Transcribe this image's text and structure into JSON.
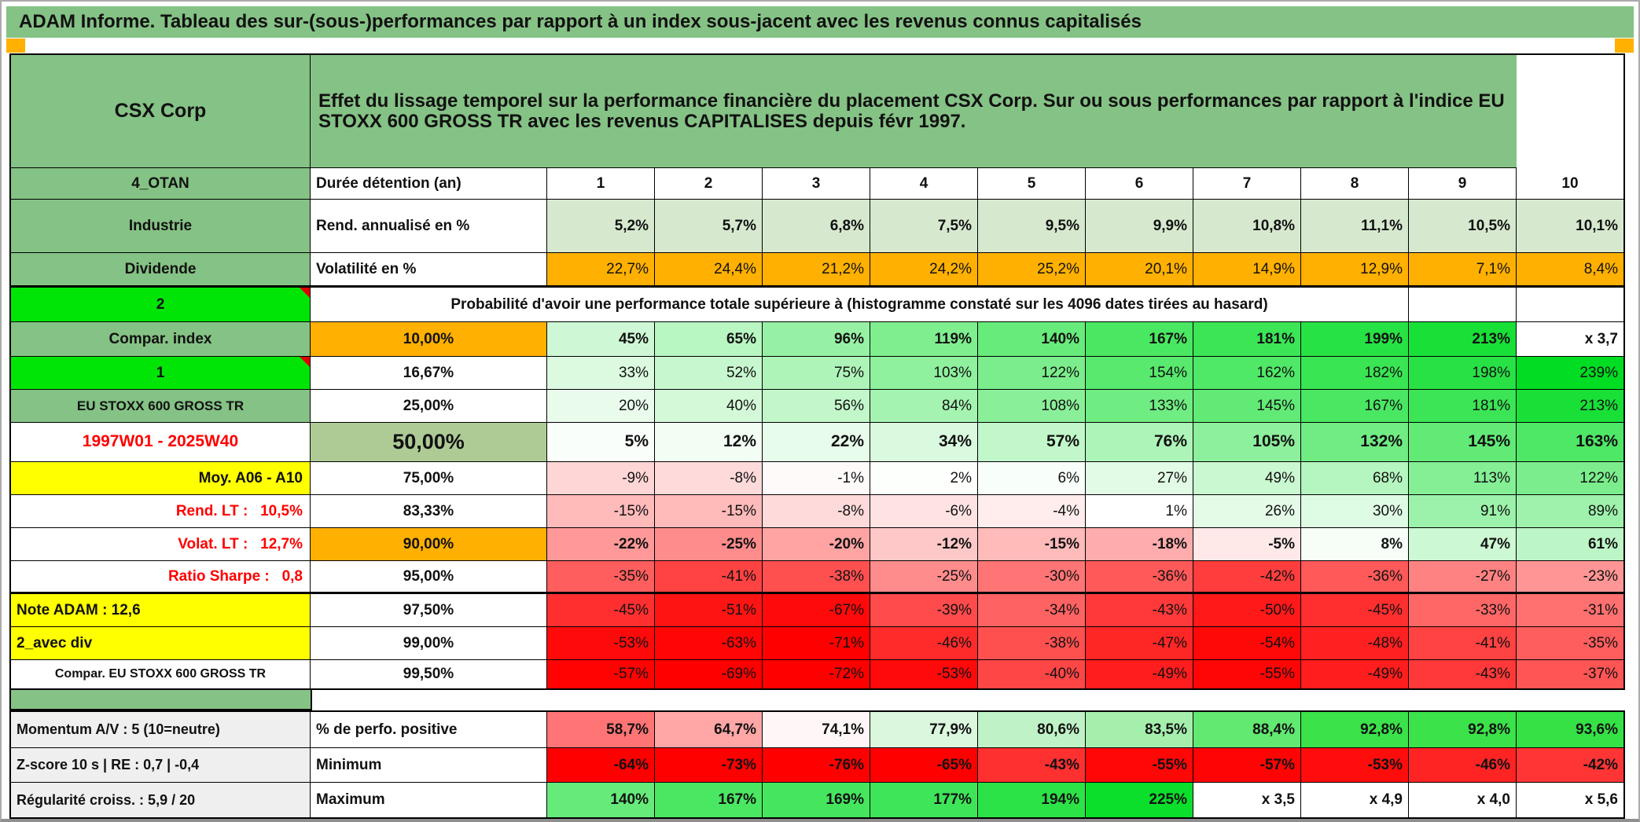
{
  "title": "ADAM Informe. Tableau des sur-(sous-)performances par rapport à un index sous-jacent avec les revenus connus capitalisés",
  "colors": {
    "header_green": "#85C285",
    "bright_green": "#00E506",
    "sage_green": "#AECB96",
    "light_green_row": "#D6E9CF",
    "orange": "#FFB000",
    "yellow": "#FFFF00",
    "red_text": "#FF0000",
    "gray_label": "#EFEFEF",
    "marker_orange": "#FFB000"
  },
  "table": {
    "corner_label": "CSX Corp",
    "description": "Effet du lissage temporel sur la performance financière du placement CSX Corp. Sur ou sous performances par rapport à l'indice EU STOXX 600 GROSS TR avec les revenus CAPITALISES depuis févr 1997.",
    "duration_header": "Durée détention (an)",
    "durations": [
      "1",
      "2",
      "3",
      "4",
      "5",
      "6",
      "7",
      "8",
      "9",
      "10"
    ],
    "probability_note": "Probabilité d'avoir une performance totale supérieure à (histogramme constaté sur les 4096 dates tirées au hasard)",
    "main_rows": [
      {
        "label": {
          "t": "4_OTAN",
          "bg": "#85C285"
        },
        "head": {
          "t": "Durée détention (an)",
          "al": "left"
        },
        "values": [
          "1",
          "2",
          "3",
          "4",
          "5",
          "6",
          "7",
          "8",
          "9",
          "10"
        ],
        "bgs": [
          "#FFFFFF",
          "#FFFFFF",
          "#FFFFFF",
          "#FFFFFF",
          "#FFFFFF",
          "#FFFFFF",
          "#FFFFFF",
          "#FFFFFF",
          "#FFFFFF",
          "#FFFFFF"
        ],
        "bold": true,
        "center_vals": true
      },
      {
        "label": {
          "t": "Industrie",
          "bg": "#85C285"
        },
        "head": {
          "t": "Rend. annualisé en %",
          "al": "left"
        },
        "values": [
          "5,2%",
          "5,7%",
          "6,8%",
          "7,5%",
          "9,5%",
          "9,9%",
          "10,8%",
          "11,1%",
          "10,5%",
          "10,1%"
        ],
        "bgs": [
          "#D6E9CF",
          "#D6E9CF",
          "#D6E9CF",
          "#D6E9CF",
          "#D6E9CF",
          "#D6E9CF",
          "#D6E9CF",
          "#D6E9CF",
          "#D6E9CF",
          "#D6E9CF"
        ],
        "bold": true
      },
      {
        "label": {
          "t": "Dividende",
          "bg": "#85C285"
        },
        "head": {
          "t": "Volatilité en %",
          "al": "left"
        },
        "values": [
          "22,7%",
          "24,4%",
          "21,2%",
          "24,2%",
          "25,2%",
          "20,1%",
          "14,9%",
          "12,9%",
          "7,1%",
          "8,4%"
        ],
        "bgs": [
          "#FFB000",
          "#FFB000",
          "#FFB000",
          "#FFB000",
          "#FFB000",
          "#FFB000",
          "#FFB000",
          "#FFB000",
          "#FFB000",
          "#FFB000"
        ],
        "bold": false,
        "thick": true
      },
      {
        "label": {
          "t": "2",
          "bg": "#00E506",
          "note": true
        },
        "merge": {
          "t": "Probabilité d'avoir une performance totale supérieure à (histogramme constaté sur les 4096 dates tirées au hasard)",
          "span": 9
        },
        "values": [
          "",
          ""
        ],
        "bgs": [
          "#FFFFFF",
          "#FFFFFF"
        ],
        "bold": true
      },
      {
        "label": {
          "t": "Compar. index",
          "bg": "#85C285"
        },
        "head": {
          "t": "10,00%",
          "bg": "#FFB000"
        },
        "values": [
          "45%",
          "65%",
          "96%",
          "119%",
          "140%",
          "167%",
          "181%",
          "199%",
          "213%",
          "x 3,7"
        ],
        "bgs": [
          "#CEF8D5",
          "#B8F6C2",
          "#97F1A5",
          "#7EEE8F",
          "#67EB7B",
          "#4AE762",
          "#3BE555",
          "#27E244",
          "#18E037",
          "#FFFFFF"
        ],
        "bold": true
      },
      {
        "label": {
          "t": "1",
          "bg": "#00E506",
          "note": true
        },
        "head": {
          "t": "16,67%"
        },
        "values": [
          "33%",
          "52%",
          "75%",
          "103%",
          "122%",
          "154%",
          "162%",
          "182%",
          "198%",
          "239%"
        ],
        "bgs": [
          "#DBFAE0",
          "#C7F7CE",
          "#AEF4B8",
          "#8FF09E",
          "#7BED8C",
          "#58E96E",
          "#4FE867",
          "#3AE554",
          "#28E245",
          "#00DD22"
        ],
        "bold": false
      },
      {
        "label": {
          "t": "EU STOXX 600 GROSS TR",
          "bg": "#85C285",
          "fz": 17
        },
        "head": {
          "t": "25,00%"
        },
        "values": [
          "20%",
          "40%",
          "56%",
          "84%",
          "108%",
          "133%",
          "145%",
          "167%",
          "181%",
          "213%"
        ],
        "bgs": [
          "#E9FCEC",
          "#D4F9D9",
          "#C2F7CA",
          "#A4F3B0",
          "#8AEF99",
          "#6FEC82",
          "#62EA77",
          "#4AE762",
          "#3BE555",
          "#18E037"
        ],
        "bold": false
      },
      {
        "label": {
          "t": "1997W01 - 2025W40",
          "col": "#FF0000",
          "fz": 21
        },
        "head": {
          "t": "50,00%",
          "bg": "#AECB96",
          "fz": 27
        },
        "values": [
          "5%",
          "12%",
          "22%",
          "34%",
          "57%",
          "76%",
          "105%",
          "132%",
          "145%",
          "163%"
        ],
        "bgs": [
          "#FAFEFA",
          "#F2FDF4",
          "#E7FCEA",
          "#DAFADF",
          "#C1F7C9",
          "#ADF4B8",
          "#8DF09C",
          "#70EC83",
          "#62EA77",
          "#4EE766"
        ],
        "bold": true,
        "fzv": 21
      },
      {
        "label": {
          "t": "Moy. A06 - A10",
          "bg": "#FFFF00",
          "al": "right"
        },
        "head": {
          "t": "75,00%"
        },
        "values": [
          "-9%",
          "-8%",
          "-1%",
          "2%",
          "6%",
          "27%",
          "49%",
          "68%",
          "113%",
          "122%"
        ],
        "bgs": [
          "#FFD6D6",
          "#FFDADA",
          "#FFFAFA",
          "#FDFFFD",
          "#F8FEF9",
          "#E2FBE6",
          "#CAF8D1",
          "#B5F5BF",
          "#84EF95",
          "#7BED8C"
        ],
        "bold": false
      },
      {
        "label": {
          "t": "Rend. LT :   10,5%",
          "col": "#FF0000",
          "al": "right"
        },
        "head": {
          "t": "83,33%"
        },
        "values": [
          "-15%",
          "-15%",
          "-8%",
          "-6%",
          "-4%",
          "1%",
          "26%",
          "30%",
          "91%",
          "89%"
        ],
        "bgs": [
          "#FFBABA",
          "#FFBABA",
          "#FFDADA",
          "#FFE3E3",
          "#FFEDED",
          "#FEFFFE",
          "#E3FBE7",
          "#DEFBE3",
          "#9CF2AA",
          "#9EF2AC"
        ],
        "bold": false
      },
      {
        "label": {
          "t": "Volat. LT :   12,7%",
          "col": "#FF0000",
          "al": "right"
        },
        "head": {
          "t": "90,00%",
          "bg": "#FFB000"
        },
        "values": [
          "-22%",
          "-25%",
          "-20%",
          "-12%",
          "-15%",
          "-18%",
          "-5%",
          "8%",
          "47%",
          "61%"
        ],
        "bgs": [
          "#FF9999",
          "#FF8C8C",
          "#FFA3A3",
          "#FFC8C8",
          "#FFBABA",
          "#FFACAC",
          "#FFE8E8",
          "#F6FEF7",
          "#CCF8D3",
          "#BDF6C6"
        ],
        "bold": true
      },
      {
        "label": {
          "t": "Ratio Sharpe :   0,8",
          "col": "#FF0000",
          "al": "right"
        },
        "head": {
          "t": "95,00%"
        },
        "values": [
          "-35%",
          "-41%",
          "-38%",
          "-25%",
          "-30%",
          "-36%",
          "-42%",
          "-36%",
          "-27%",
          "-23%"
        ],
        "bgs": [
          "#FF5E5E",
          "#FF4242",
          "#FF5050",
          "#FF8C8C",
          "#FF7575",
          "#FF5959",
          "#FF3D3D",
          "#FF5959",
          "#FF8282",
          "#FF9595"
        ],
        "bold": false,
        "thick": true
      },
      {
        "label": {
          "t": "Note ADAM : 12,6",
          "bg": "#FFFF00",
          "al": "left"
        },
        "head": {
          "t": "97,50%"
        },
        "values": [
          "-45%",
          "-51%",
          "-67%",
          "-39%",
          "-34%",
          "-43%",
          "-50%",
          "-45%",
          "-33%",
          "-31%"
        ],
        "bgs": [
          "#FF2F2F",
          "#FF1414",
          "#FF0A0A",
          "#FF4B4B",
          "#FF6262",
          "#FF3939",
          "#FF1919",
          "#FF2F2F",
          "#FF6767",
          "#FF7070"
        ],
        "bold": false
      },
      {
        "label": {
          "t": "2_avec div",
          "bg": "#FFFF00",
          "al": "left"
        },
        "head": {
          "t": "99,00%"
        },
        "values": [
          "-53%",
          "-63%",
          "-71%",
          "-46%",
          "-38%",
          "-47%",
          "-54%",
          "-48%",
          "-41%",
          "-35%"
        ],
        "bgs": [
          "#FF0A0A",
          "#FF0505",
          "#FF0000",
          "#FF2B2B",
          "#FF5050",
          "#FF2626",
          "#FF0808",
          "#FF2121",
          "#FF4242",
          "#FF5E5E"
        ],
        "bold": false
      },
      {
        "label": {
          "t": "Compar. EU STOXX 600 GROSS TR",
          "fz": 16
        },
        "head": {
          "t": "99,50%"
        },
        "values": [
          "-57%",
          "-69%",
          "-72%",
          "-53%",
          "-40%",
          "-49%",
          "-55%",
          "-49%",
          "-43%",
          "-37%"
        ],
        "bgs": [
          "#FF0303",
          "#FF0000",
          "#FF0000",
          "#FF0A0A",
          "#FF4646",
          "#FF1D1D",
          "#FF0606",
          "#FF1D1D",
          "#FF3939",
          "#FF5555"
        ],
        "bold": false
      }
    ],
    "bottom_rows": [
      {
        "label": {
          "t": "Momentum A/V : 5 (10=neutre)",
          "bg": "#EFEFEF",
          "al": "left",
          "fz": 18
        },
        "head": {
          "t": "% de perfo. positive",
          "al": "left"
        },
        "values": [
          "58,7%",
          "64,7%",
          "74,1%",
          "77,9%",
          "80,6%",
          "83,5%",
          "88,4%",
          "92,8%",
          "92,8%",
          "93,6%"
        ],
        "bgs": [
          "#FF7474",
          "#FFA7A7",
          "#FFF7F7",
          "#DBF8DF",
          "#BFF2C6",
          "#A5EFAD",
          "#62E972",
          "#3BE24A",
          "#3BE24A",
          "#35E145"
        ],
        "bold": true
      },
      {
        "label": {
          "t": "Z-score 10 s | RE : 0,7 | -0,4",
          "bg": "#EFEFEF",
          "al": "left",
          "fz": 18
        },
        "head": {
          "t": "Minimum",
          "al": "left"
        },
        "values": [
          "-64%",
          "-73%",
          "-76%",
          "-65%",
          "-43%",
          "-55%",
          "-57%",
          "-53%",
          "-46%",
          "-42%"
        ],
        "bgs": [
          "#FF0000",
          "#FF0000",
          "#FF0000",
          "#FF0000",
          "#FF3030",
          "#FF0707",
          "#FF0404",
          "#FF0C0C",
          "#FF2424",
          "#FF3535"
        ],
        "bold": true
      },
      {
        "label": {
          "t": "Régularité croiss. : 5,9 / 20",
          "bg": "#EFEFEF",
          "al": "left",
          "fz": 18
        },
        "head": {
          "t": "Maximum",
          "al": "left"
        },
        "values": [
          "140%",
          "167%",
          "169%",
          "177%",
          "194%",
          "225%",
          "x 3,5",
          "x 4,9",
          "x 4,0",
          "x 5,6"
        ],
        "bgs": [
          "#66EB7B",
          "#4AE762",
          "#45E65E",
          "#3FE559",
          "#2CE347",
          "#0BDE2B",
          "#FFFFFF",
          "#FFFFFF",
          "#FFFFFF",
          "#FFFFFF"
        ],
        "bold": true
      }
    ]
  }
}
